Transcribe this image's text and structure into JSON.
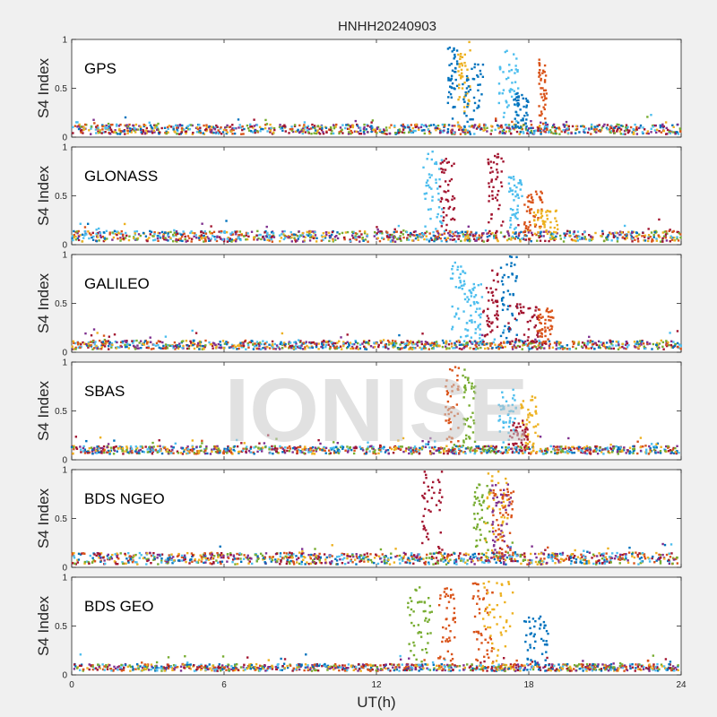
{
  "chart_data": {
    "type": "scatter",
    "title": "HNHH20240903",
    "xlabel": "UT(h)",
    "ylabel": "S4 Index",
    "xlim": [
      0,
      24
    ],
    "ylim": [
      0,
      1
    ],
    "xticks": [
      "0",
      "6",
      "12",
      "18",
      "24"
    ],
    "yticks": [
      "0",
      "0.5",
      "1"
    ],
    "watermark": "IONISE",
    "colors": [
      "#0072BD",
      "#D95319",
      "#EDB120",
      "#7E2F8E",
      "#77AC30",
      "#4DBEEE",
      "#A2142F"
    ],
    "panels": [
      {
        "name": "GPS",
        "background_range": [
          0.03,
          0.13
        ],
        "spikes": [
          {
            "t": [
              14.8,
              15.2
            ],
            "peak": 0.92,
            "color": "#0072BD"
          },
          {
            "t": [
              15.2,
              15.7
            ],
            "peak": 0.98,
            "color": "#EDB120"
          },
          {
            "t": [
              15.4,
              16.2
            ],
            "peak": 0.75,
            "color": "#0072BD"
          },
          {
            "t": [
              16.8,
              17.6
            ],
            "peak": 0.9,
            "color": "#4DBEEE"
          },
          {
            "t": [
              17.4,
              18.0
            ],
            "peak": 0.45,
            "color": "#0072BD"
          },
          {
            "t": [
              18.4,
              18.7
            ],
            "peak": 0.8,
            "color": "#D95319"
          }
        ]
      },
      {
        "name": "GLONASS",
        "background_range": [
          0.03,
          0.14
        ],
        "spikes": [
          {
            "t": [
              13.8,
              14.6
            ],
            "peak": 0.97,
            "color": "#4DBEEE"
          },
          {
            "t": [
              14.5,
              15.1
            ],
            "peak": 0.9,
            "color": "#A2142F"
          },
          {
            "t": [
              16.4,
              17.0
            ],
            "peak": 0.95,
            "color": "#A2142F"
          },
          {
            "t": [
              17.2,
              17.8
            ],
            "peak": 0.7,
            "color": "#4DBEEE"
          },
          {
            "t": [
              17.8,
              18.6
            ],
            "peak": 0.55,
            "color": "#D95319"
          },
          {
            "t": [
              18.2,
              19.2
            ],
            "peak": 0.35,
            "color": "#EDB120"
          }
        ]
      },
      {
        "name": "GALILEO",
        "background_range": [
          0.03,
          0.12
        ],
        "spikes": [
          {
            "t": [
              14.9,
              15.6
            ],
            "peak": 0.92,
            "color": "#4DBEEE"
          },
          {
            "t": [
              15.6,
              16.2
            ],
            "peak": 0.7,
            "color": "#4DBEEE"
          },
          {
            "t": [
              16.2,
              16.8
            ],
            "peak": 0.85,
            "color": "#A2142F"
          },
          {
            "t": [
              16.9,
              17.6
            ],
            "peak": 0.98,
            "color": "#0072BD"
          },
          {
            "t": [
              17.2,
              18.4
            ],
            "peak": 0.5,
            "color": "#A2142F"
          },
          {
            "t": [
              18.3,
              19.0
            ],
            "peak": 0.45,
            "color": "#D95319"
          }
        ]
      },
      {
        "name": "SBAS",
        "background_range": [
          0.06,
          0.14
        ],
        "spikes": [
          {
            "t": [
              14.7,
              15.3
            ],
            "peak": 0.97,
            "color": "#D95319"
          },
          {
            "t": [
              15.4,
              15.9
            ],
            "peak": 0.93,
            "color": "#77AC30"
          },
          {
            "t": [
              16.8,
              17.5
            ],
            "peak": 0.72,
            "color": "#4DBEEE"
          },
          {
            "t": [
              17.7,
              18.4
            ],
            "peak": 0.65,
            "color": "#EDB120"
          },
          {
            "t": [
              17.2,
              18.0
            ],
            "peak": 0.4,
            "color": "#A2142F"
          }
        ]
      },
      {
        "name": "BDS NGEO",
        "background_range": [
          0.03,
          0.15
        ],
        "spikes": [
          {
            "t": [
              13.8,
              14.6
            ],
            "peak": 0.98,
            "color": "#A2142F"
          },
          {
            "t": [
              15.8,
              16.5
            ],
            "peak": 0.85,
            "color": "#77AC30"
          },
          {
            "t": [
              16.3,
              17.2
            ],
            "peak": 0.98,
            "color": "#EDB120"
          },
          {
            "t": [
              16.5,
              17.3
            ],
            "peak": 0.9,
            "color": "#7E2F8E"
          },
          {
            "t": [
              16.6,
              17.4
            ],
            "peak": 0.8,
            "color": "#D95319"
          }
        ]
      },
      {
        "name": "BDS GEO",
        "background_range": [
          0.04,
          0.11
        ],
        "spikes": [
          {
            "t": [
              13.2,
              14.2
            ],
            "peak": 0.92,
            "color": "#77AC30"
          },
          {
            "t": [
              14.4,
              15.1
            ],
            "peak": 0.9,
            "color": "#D95319"
          },
          {
            "t": [
              15.8,
              16.6
            ],
            "peak": 0.95,
            "color": "#D95319"
          },
          {
            "t": [
              16.2,
              17.4
            ],
            "peak": 0.98,
            "color": "#EDB120"
          },
          {
            "t": [
              17.8,
              18.8
            ],
            "peak": 0.6,
            "color": "#0072BD"
          }
        ]
      }
    ]
  }
}
